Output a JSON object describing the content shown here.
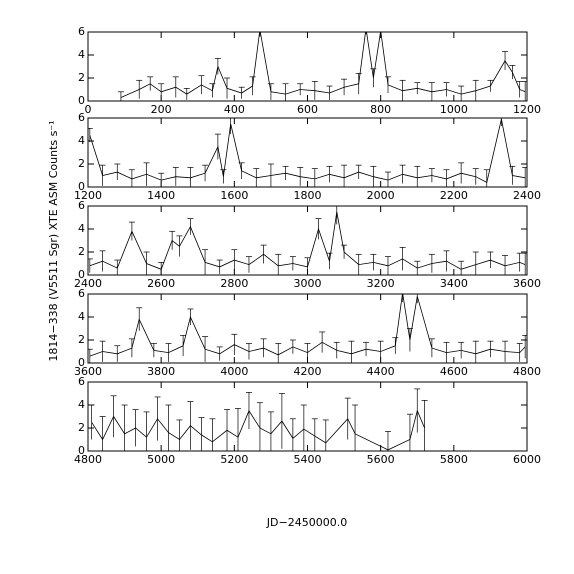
{
  "chart_data": [
    {
      "type": "line",
      "x": [
        90,
        140,
        170,
        200,
        240,
        270,
        310,
        340,
        355,
        380,
        420,
        450,
        470,
        500,
        540,
        580,
        620,
        660,
        700,
        740,
        760,
        780,
        800,
        820,
        860,
        900,
        940,
        980,
        1020,
        1060,
        1100,
        1140,
        1160,
        1180,
        1195
      ],
      "values": [
        0.3,
        1.0,
        1.5,
        0.8,
        1.2,
        0.6,
        1.4,
        0.9,
        3.0,
        1.1,
        0.7,
        1.3,
        6.2,
        0.8,
        0.6,
        1.0,
        0.9,
        0.7,
        1.2,
        1.5,
        6.3,
        2.0,
        6.1,
        1.4,
        0.9,
        1.1,
        0.8,
        1.0,
        0.6,
        0.9,
        1.3,
        3.5,
        2.5,
        1.0,
        0.8
      ],
      "errors": [
        0.5,
        0.8,
        0.6,
        0.7,
        0.9,
        0.5,
        0.8,
        0.6,
        0.7,
        0.9,
        0.5,
        0.8,
        0.6,
        0.7,
        0.9,
        0.5,
        0.8,
        0.6,
        0.7,
        0.9,
        0.5,
        0.8,
        0.6,
        0.7,
        0.9,
        0.5,
        0.8,
        0.6,
        0.7,
        0.9,
        0.5,
        0.8,
        0.6,
        0.7,
        0.9
      ],
      "color": "#000000",
      "xlim": [
        0,
        1200
      ],
      "xticks": [
        0,
        200,
        400,
        600,
        800,
        1000,
        1200
      ],
      "ylim": [
        0,
        6
      ],
      "yticks": [
        0,
        2,
        4,
        6
      ]
    },
    {
      "type": "line",
      "x": [
        1205,
        1240,
        1280,
        1320,
        1360,
        1400,
        1440,
        1480,
        1520,
        1555,
        1570,
        1590,
        1620,
        1660,
        1700,
        1740,
        1780,
        1820,
        1860,
        1900,
        1940,
        1980,
        2020,
        2060,
        2100,
        2140,
        2180,
        2220,
        2260,
        2290,
        2330,
        2360,
        2395
      ],
      "values": [
        4.5,
        1.0,
        1.3,
        0.7,
        1.1,
        0.6,
        0.9,
        0.8,
        1.2,
        3.5,
        0.9,
        5.5,
        1.4,
        0.8,
        1.0,
        1.2,
        0.9,
        0.7,
        1.1,
        0.8,
        1.3,
        0.9,
        0.6,
        1.1,
        0.8,
        1.0,
        0.7,
        1.2,
        0.9,
        0.4,
        5.9,
        1.0,
        0.8
      ],
      "errors": [
        0.6,
        0.9,
        0.7,
        0.8,
        1.0,
        0.6,
        0.8,
        0.9,
        0.7,
        1.1,
        0.6,
        0.9,
        0.7,
        0.8,
        1.0,
        0.6,
        0.8,
        0.9,
        0.7,
        1.1,
        0.6,
        0.9,
        0.7,
        0.8,
        1.0,
        0.6,
        0.8,
        0.9,
        0.7,
        1.1,
        0.6,
        0.8,
        0.9
      ],
      "color": "#000000",
      "xlim": [
        1200,
        2400
      ],
      "xticks": [
        1200,
        1400,
        1600,
        1800,
        2000,
        2200,
        2400
      ],
      "ylim": [
        0,
        6
      ],
      "yticks": [
        0,
        2,
        4,
        6
      ]
    },
    {
      "type": "line",
      "y_label": "1814−338 (V5511 Sgr) XTE ASM Counts s⁻¹",
      "x": [
        2405,
        2440,
        2480,
        2520,
        2560,
        2600,
        2630,
        2650,
        2680,
        2720,
        2760,
        2800,
        2840,
        2880,
        2920,
        2960,
        3000,
        3030,
        3060,
        3080,
        3100,
        3140,
        3180,
        3220,
        3260,
        3300,
        3340,
        3380,
        3420,
        3460,
        3500,
        3540,
        3580,
        3595
      ],
      "values": [
        0.8,
        1.2,
        0.6,
        3.8,
        1.0,
        0.5,
        3.0,
        2.5,
        4.2,
        1.1,
        0.7,
        1.3,
        0.9,
        1.8,
        0.8,
        1.0,
        0.7,
        4.0,
        1.2,
        5.5,
        2.0,
        0.9,
        1.1,
        0.8,
        1.4,
        0.6,
        1.0,
        1.2,
        0.5,
        0.9,
        1.3,
        0.8,
        1.1,
        0.9
      ],
      "errors": [
        0.6,
        0.9,
        0.7,
        0.8,
        1.0,
        0.6,
        0.8,
        0.9,
        0.7,
        1.1,
        0.6,
        0.9,
        0.7,
        0.8,
        1.0,
        0.6,
        0.8,
        0.9,
        0.7,
        1.1,
        0.6,
        0.9,
        0.7,
        0.8,
        1.0,
        0.6,
        0.8,
        0.9,
        0.7,
        1.1,
        0.7,
        0.9,
        0.8,
        1.0
      ],
      "color": "#000000",
      "xlim": [
        2400,
        3600
      ],
      "xticks": [
        2400,
        2600,
        2800,
        3000,
        3200,
        3400,
        3600
      ],
      "ylim": [
        0,
        6
      ],
      "yticks": [
        0,
        2,
        4,
        6
      ]
    },
    {
      "type": "line",
      "x": [
        3605,
        3640,
        3680,
        3720,
        3740,
        3780,
        3820,
        3860,
        3880,
        3920,
        3960,
        4000,
        4040,
        4080,
        4120,
        4160,
        4200,
        4240,
        4280,
        4320,
        4360,
        4400,
        4440,
        4460,
        4480,
        4500,
        4540,
        4580,
        4620,
        4660,
        4700,
        4740,
        4780,
        4795
      ],
      "values": [
        0.6,
        1.0,
        0.8,
        1.3,
        3.8,
        1.1,
        0.9,
        1.5,
        4.0,
        1.2,
        0.8,
        1.6,
        1.0,
        1.3,
        0.7,
        1.4,
        0.9,
        1.8,
        1.1,
        0.8,
        1.2,
        1.0,
        1.5,
        6.1,
        2.0,
        5.8,
        1.3,
        0.9,
        1.1,
        0.8,
        1.2,
        1.0,
        0.9,
        1.4
      ],
      "errors": [
        0.6,
        0.9,
        0.7,
        0.8,
        1.0,
        0.6,
        0.8,
        0.9,
        0.7,
        1.1,
        0.6,
        0.9,
        0.7,
        0.8,
        1.0,
        0.6,
        0.8,
        0.9,
        0.7,
        1.1,
        0.6,
        0.9,
        0.7,
        0.8,
        1.0,
        0.6,
        0.8,
        0.9,
        0.7,
        1.1,
        0.7,
        0.9,
        0.8,
        1.0
      ],
      "color": "#000000",
      "xlim": [
        3600,
        4800
      ],
      "xticks": [
        3600,
        3800,
        4000,
        4200,
        4400,
        4600,
        4800
      ],
      "ylim": [
        0,
        6
      ],
      "yticks": [
        0,
        2,
        4,
        6
      ]
    },
    {
      "type": "line",
      "x_label": "JD−2450000.0",
      "x": [
        4810,
        4840,
        4870,
        4900,
        4930,
        4960,
        4990,
        5020,
        5050,
        5080,
        5110,
        5140,
        5180,
        5210,
        5240,
        5270,
        5300,
        5330,
        5360,
        5390,
        5420,
        5450,
        5510,
        5530,
        5620,
        5680,
        5700,
        5720
      ],
      "values": [
        2.5,
        1.0,
        3.0,
        1.5,
        2.0,
        1.2,
        2.8,
        1.6,
        1.0,
        2.2,
        1.4,
        0.8,
        1.8,
        1.2,
        3.5,
        2.0,
        1.5,
        2.6,
        1.1,
        1.9,
        1.3,
        0.7,
        2.8,
        1.5,
        0.1,
        1.0,
        3.5,
        2.0
      ],
      "errors": [
        1.5,
        2.0,
        1.8,
        2.5,
        1.6,
        2.2,
        1.9,
        2.4,
        1.7,
        2.1,
        1.5,
        2.0,
        1.8,
        2.5,
        1.6,
        2.2,
        1.9,
        2.4,
        1.7,
        2.1,
        1.5,
        2.0,
        1.8,
        2.5,
        1.6,
        2.2,
        1.9,
        2.4
      ],
      "color": "#000000",
      "xlim": [
        4800,
        6000
      ],
      "xticks": [
        4800,
        5000,
        5200,
        5400,
        5600,
        5800,
        6000
      ],
      "ylim": [
        0,
        6
      ],
      "yticks": [
        0,
        2,
        4,
        6
      ]
    }
  ]
}
